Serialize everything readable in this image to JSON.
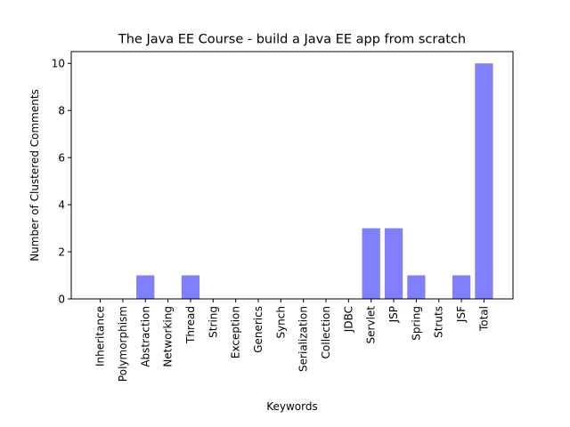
{
  "chart_data": {
    "type": "bar",
    "title": "The Java EE Course - build a Java EE app from scratch",
    "xlabel": "Keywords",
    "ylabel": "Number of Clustered Comments",
    "categories": [
      "Inheritance",
      "Polymorphism",
      "Abstraction",
      "Networking",
      "Thread",
      "String",
      "Exception",
      "Generics",
      "Synch",
      "Serialization",
      "Collection",
      "JDBC",
      "Servlet",
      "JSP",
      "Spring",
      "Struts",
      "JSF",
      "Total"
    ],
    "values": [
      0,
      0,
      1,
      0,
      1,
      0,
      0,
      0,
      0,
      0,
      0,
      0,
      3,
      3,
      1,
      0,
      1,
      10
    ],
    "ylim": [
      0,
      10.5
    ],
    "yticks": [
      0,
      2,
      4,
      6,
      8,
      10
    ],
    "bar_color": "#8080ff",
    "grid": false,
    "legend": "none"
  }
}
